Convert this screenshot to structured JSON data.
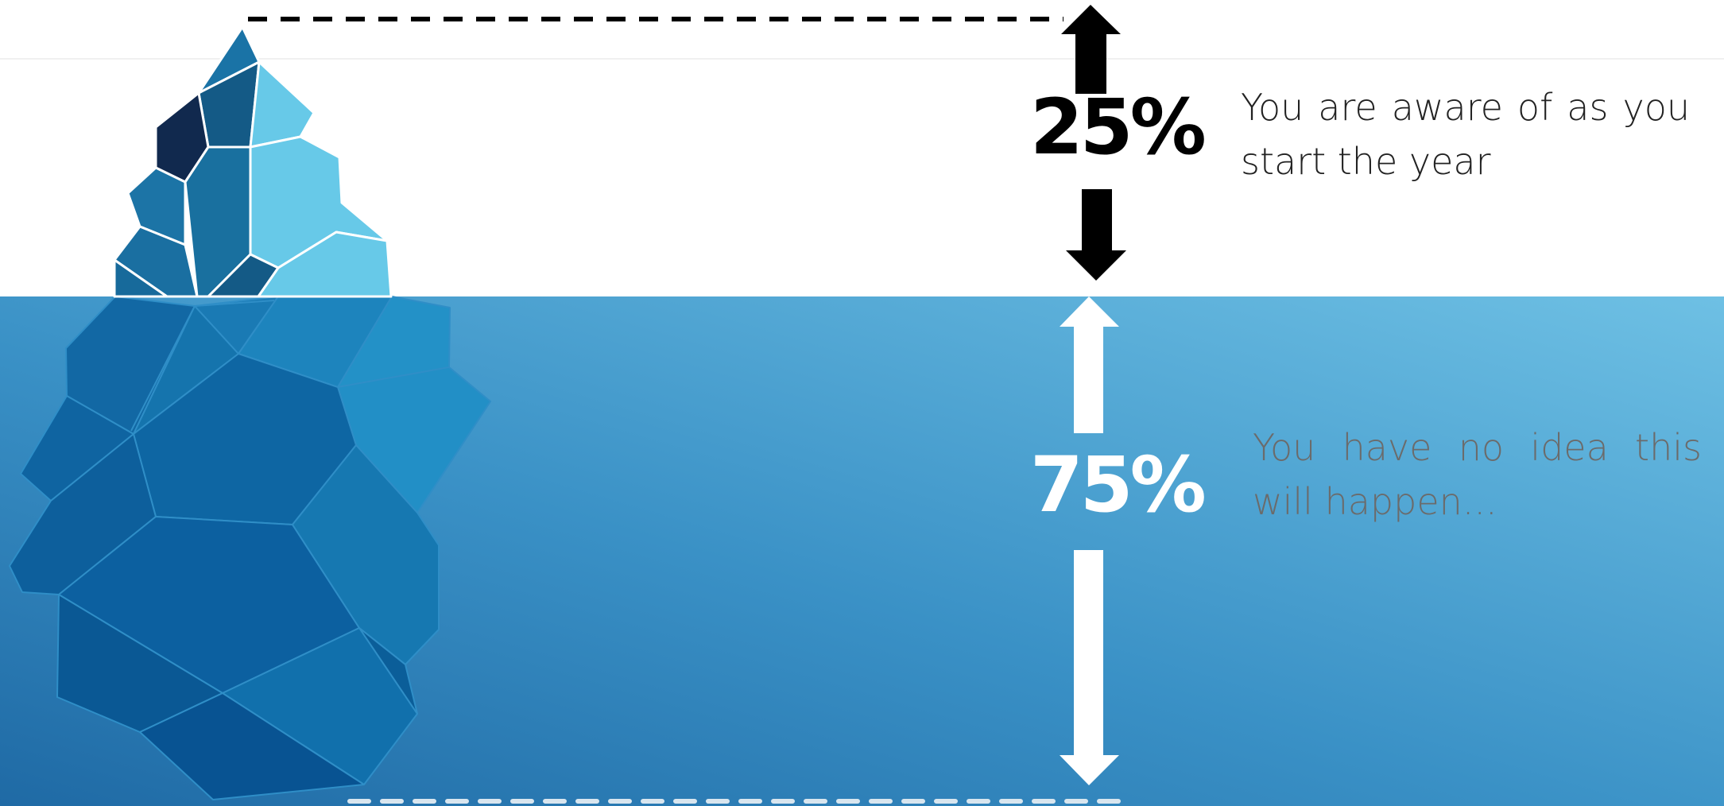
{
  "above_water": {
    "percent": "25%",
    "description": "You are aware of as you start the year"
  },
  "below_water": {
    "percent": "75%",
    "description": "You have no idea this will happen..."
  },
  "colors": {
    "water_top": "#6ec0e4",
    "water_bottom": "#1f6aa5",
    "ice_light": "#67c9e8",
    "ice_mid": "#19709f",
    "ice_dark": "#11294e",
    "arrow_above": "#000000",
    "arrow_below": "#ffffff",
    "dashed_line_top": "#000000",
    "dashed_line_bottom": "#d9e6ef"
  },
  "icons": {
    "top_line": "dashed-line",
    "bottom_line": "dashed-line",
    "arrows": "double-headed-vertical-arrow"
  }
}
